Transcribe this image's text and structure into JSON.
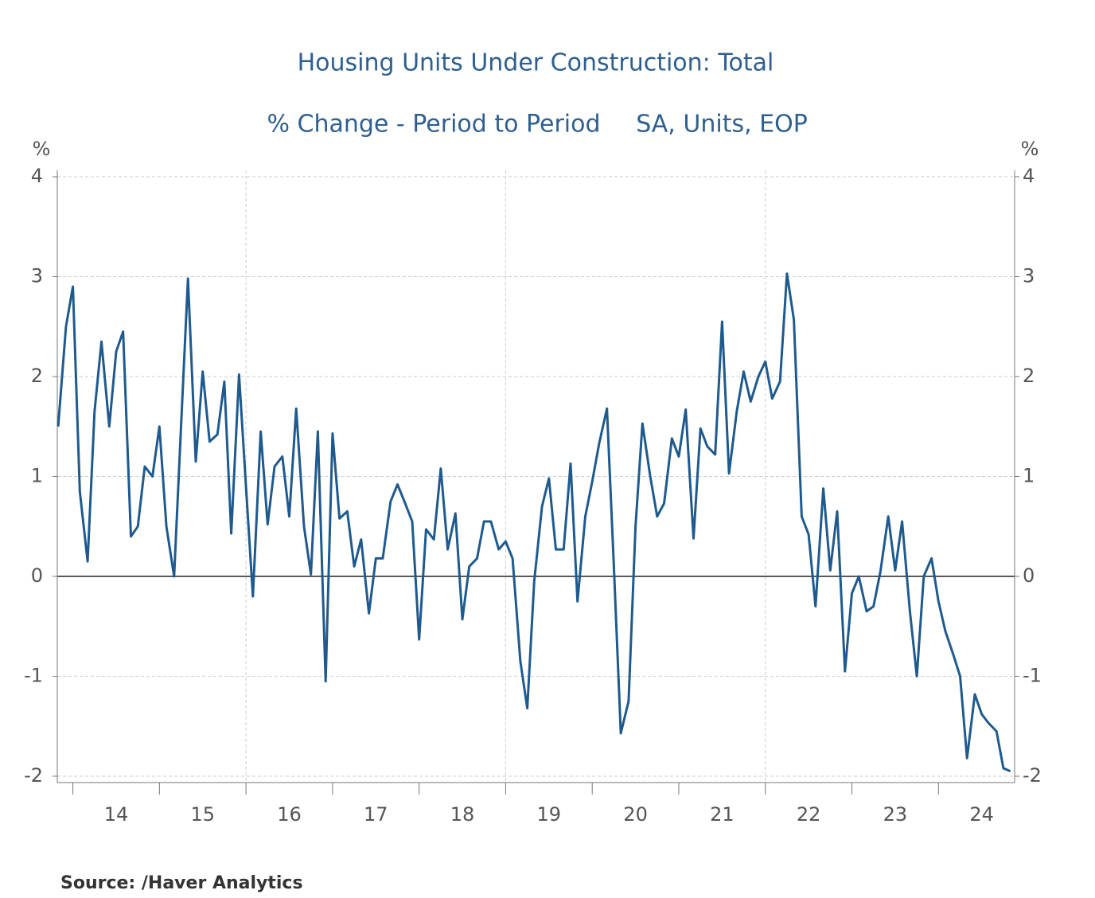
{
  "chart_data": {
    "type": "line",
    "title": "Housing Units Under Construction: Total",
    "subtitle": [
      "% Change - Period to Period",
      "SA, Units, EOP"
    ],
    "y_unit_left": "%",
    "y_unit_right": "%",
    "source": "Source:  /Haver Analytics",
    "x": [
      2013.83,
      2013.92,
      2014.0,
      2014.08,
      2014.17,
      2014.25,
      2014.33,
      2014.42,
      2014.5,
      2014.58,
      2014.67,
      2014.75,
      2014.83,
      2014.92,
      2015.0,
      2015.08,
      2015.17,
      2015.25,
      2015.33,
      2015.42,
      2015.5,
      2015.58,
      2015.67,
      2015.75,
      2015.83,
      2015.92,
      2016.0,
      2016.08,
      2016.17,
      2016.25,
      2016.33,
      2016.42,
      2016.5,
      2016.58,
      2016.67,
      2016.75,
      2016.83,
      2016.92,
      2017.0,
      2017.08,
      2017.17,
      2017.25,
      2017.33,
      2017.42,
      2017.5,
      2017.58,
      2017.67,
      2017.75,
      2017.83,
      2017.92,
      2018.0,
      2018.08,
      2018.17,
      2018.25,
      2018.33,
      2018.42,
      2018.5,
      2018.58,
      2018.67,
      2018.75,
      2018.83,
      2018.92,
      2019.0,
      2019.08,
      2019.17,
      2019.25,
      2019.33,
      2019.42,
      2019.5,
      2019.58,
      2019.67,
      2019.75,
      2019.83,
      2019.92,
      2020.0,
      2020.08,
      2020.17,
      2020.25,
      2020.33,
      2020.42,
      2020.5,
      2020.58,
      2020.67,
      2020.75,
      2020.83,
      2020.92,
      2021.0,
      2021.08,
      2021.17,
      2021.25,
      2021.33,
      2021.42,
      2021.5,
      2021.58,
      2021.67,
      2021.75,
      2021.83,
      2021.92,
      2022.0,
      2022.08,
      2022.17,
      2022.25,
      2022.33,
      2022.42,
      2022.5,
      2022.58,
      2022.67,
      2022.75,
      2022.83,
      2022.92,
      2023.0,
      2023.08,
      2023.17,
      2023.25,
      2023.33,
      2023.42,
      2023.5,
      2023.58,
      2023.67,
      2023.75,
      2023.83,
      2023.92,
      2024.0,
      2024.08,
      2024.17,
      2024.25,
      2024.33,
      2024.42,
      2024.5,
      2024.58,
      2024.67,
      2024.75,
      2024.83
    ],
    "series": [
      {
        "name": "Housing Units Under Construction: Total",
        "color": "#1f5a8e",
        "values": [
          1.5,
          2.5,
          2.9,
          0.85,
          0.15,
          1.65,
          2.35,
          1.5,
          2.25,
          2.45,
          0.4,
          0.5,
          1.1,
          1.0,
          1.5,
          0.5,
          0.0,
          1.5,
          2.98,
          1.15,
          2.05,
          1.35,
          1.42,
          1.95,
          0.43,
          2.02,
          0.9,
          -0.2,
          1.45,
          0.52,
          1.1,
          1.2,
          0.6,
          1.68,
          0.5,
          0.02,
          1.45,
          -1.05,
          1.43,
          0.58,
          0.65,
          0.1,
          0.37,
          -0.37,
          0.18,
          0.18,
          0.75,
          0.92,
          0.75,
          0.55,
          -0.63,
          0.47,
          0.37,
          1.08,
          0.27,
          0.63,
          -0.43,
          0.1,
          0.18,
          0.55,
          0.55,
          0.27,
          0.35,
          0.18,
          -0.85,
          -1.32,
          -0.05,
          0.7,
          0.98,
          0.27,
          0.27,
          1.13,
          -0.25,
          0.6,
          0.95,
          1.33,
          1.68,
          0.1,
          -1.57,
          -1.25,
          0.5,
          1.53,
          1.0,
          0.6,
          0.73,
          1.38,
          1.2,
          1.67,
          0.38,
          1.48,
          1.3,
          1.22,
          2.55,
          1.03,
          1.65,
          2.05,
          1.75,
          2.0,
          2.15,
          1.78,
          1.95,
          3.03,
          2.57,
          0.6,
          0.42,
          -0.3,
          0.88,
          0.06,
          0.65,
          -0.95,
          -0.17,
          0.0,
          -0.35,
          -0.3,
          0.05,
          0.6,
          0.06,
          0.55,
          -0.35,
          -1.0,
          0.0,
          0.18,
          -0.25,
          -0.55,
          -0.78,
          -1.0,
          -1.82,
          -1.18,
          -1.38,
          -1.47,
          -1.55,
          -1.92,
          -1.95
        ]
      }
    ],
    "xlim": [
      2013.82,
      2024.88
    ],
    "xticks": [
      {
        "value": 2014.5,
        "label": "14"
      },
      {
        "value": 2015.5,
        "label": "15"
      },
      {
        "value": 2016.5,
        "label": "16"
      },
      {
        "value": 2017.5,
        "label": "17"
      },
      {
        "value": 2018.5,
        "label": "18"
      },
      {
        "value": 2019.5,
        "label": "19"
      },
      {
        "value": 2020.5,
        "label": "20"
      },
      {
        "value": 2021.5,
        "label": "21"
      },
      {
        "value": 2022.5,
        "label": "22"
      },
      {
        "value": 2023.5,
        "label": "23"
      },
      {
        "value": 2024.5,
        "label": "24"
      }
    ],
    "xgrid": [
      2016,
      2019,
      2022
    ],
    "ylim": [
      -2,
      4
    ],
    "yticks": [
      -2,
      -1,
      0,
      1,
      2,
      3,
      4
    ],
    "grid": true
  }
}
